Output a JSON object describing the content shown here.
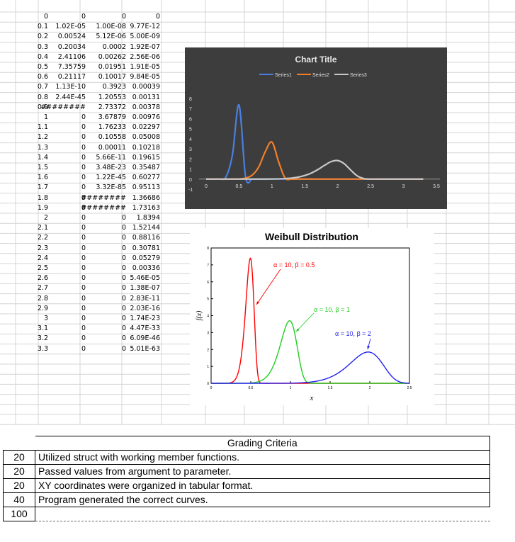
{
  "sheet": {
    "rows": [
      [
        "0",
        "0",
        "0",
        "0"
      ],
      [
        "0.1",
        "1.02E-05",
        "1.00E-08",
        "9.77E-12"
      ],
      [
        "0.2",
        "0.00524",
        "5.12E-06",
        "5.00E-09"
      ],
      [
        "0.3",
        "0.20034",
        "0.0002",
        "1.92E-07"
      ],
      [
        "0.4",
        "2.41106",
        "0.00262",
        "2.56E-06"
      ],
      [
        "0.5",
        "7.35759",
        "0.01951",
        "1.91E-05"
      ],
      [
        "0.6",
        "0.21117",
        "0.10017",
        "9.84E-05"
      ],
      [
        "0.7",
        "1.13E-10",
        "0.3923",
        "0.00039"
      ],
      [
        "0.8",
        "2.44E-45",
        "1.20553",
        "0.00131"
      ],
      [
        "0.9",
        "########",
        "2.73372",
        "0.00378"
      ],
      [
        "1",
        "0",
        "3.67879",
        "0.00976"
      ],
      [
        "1.1",
        "0",
        "1.76233",
        "0.02297"
      ],
      [
        "1.2",
        "0",
        "0.10558",
        "0.05008"
      ],
      [
        "1.3",
        "0",
        "0.00011",
        "0.10218"
      ],
      [
        "1.4",
        "0",
        "5.66E-11",
        "0.19615"
      ],
      [
        "1.5",
        "0",
        "3.48E-23",
        "0.35487"
      ],
      [
        "1.6",
        "0",
        "1.22E-45",
        "0.60277"
      ],
      [
        "1.7",
        "0",
        "3.32E-85",
        "0.95113"
      ],
      [
        "1.8",
        "0",
        "########",
        "1.36686"
      ],
      [
        "1.9",
        "0",
        "########",
        "1.73163"
      ],
      [
        "2",
        "0",
        "0",
        "1.8394"
      ],
      [
        "2.1",
        "0",
        "0",
        "1.52144"
      ],
      [
        "2.2",
        "0",
        "0",
        "0.88116"
      ],
      [
        "2.3",
        "0",
        "0",
        "0.30781"
      ],
      [
        "2.4",
        "0",
        "0",
        "0.05279"
      ],
      [
        "2.5",
        "0",
        "0",
        "0.00336"
      ],
      [
        "2.6",
        "0",
        "0",
        "5.46E-05"
      ],
      [
        "2.7",
        "0",
        "0",
        "1.38E-07"
      ],
      [
        "2.8",
        "0",
        "0",
        "2.83E-11"
      ],
      [
        "2.9",
        "0",
        "0",
        "2.03E-16"
      ],
      [
        "3",
        "0",
        "0",
        "1.74E-23"
      ],
      [
        "3.1",
        "0",
        "0",
        "4.47E-33"
      ],
      [
        "3.2",
        "0",
        "0",
        "6.09E-46"
      ],
      [
        "3.3",
        "0",
        "0",
        "5.01E-63"
      ]
    ]
  },
  "chart_data": [
    {
      "type": "line",
      "title": "Chart Title",
      "background": "#3d3d3d",
      "legend_position": "top",
      "x": [
        0,
        0.1,
        0.2,
        0.3,
        0.4,
        0.5,
        0.6,
        0.7,
        0.8,
        0.9,
        1,
        1.1,
        1.2,
        1.3,
        1.4,
        1.5,
        1.6,
        1.7,
        1.8,
        1.9,
        2,
        2.1,
        2.2,
        2.3,
        2.4,
        2.5,
        2.6,
        2.7,
        2.8,
        2.9,
        3,
        3.1,
        3.2,
        3.3
      ],
      "xlim": [
        0,
        3.5
      ],
      "ylim": [
        -1,
        8
      ],
      "x_ticks": [
        "0",
        "0.5",
        "1",
        "1.5",
        "2",
        "2.5",
        "3",
        "3.5"
      ],
      "y_ticks": [
        "-1",
        "0",
        "1",
        "2",
        "3",
        "4",
        "5",
        "6",
        "7",
        "8"
      ],
      "series": [
        {
          "name": "Series1",
          "color": "#4a7fe0",
          "values": [
            0,
            1.02e-05,
            0.00524,
            0.20034,
            2.41106,
            7.35759,
            0.21117,
            0,
            0,
            0,
            0,
            0,
            0,
            0,
            0,
            0,
            0,
            0,
            0,
            0,
            0,
            0,
            0,
            0,
            0,
            0,
            0,
            0,
            0,
            0,
            0,
            0,
            0,
            0
          ]
        },
        {
          "name": "Series2",
          "color": "#f07f2a",
          "values": [
            0,
            0,
            5.12e-06,
            0.0002,
            0.00262,
            0.01951,
            0.10017,
            0.3923,
            1.20553,
            2.73372,
            3.67879,
            1.76233,
            0.10558,
            0.00011,
            0,
            0,
            0,
            0,
            0,
            0,
            0,
            0,
            0,
            0,
            0,
            0,
            0,
            0,
            0,
            0,
            0,
            0,
            0,
            0
          ]
        },
        {
          "name": "Series3",
          "color": "#c8c8c8",
          "values": [
            0,
            0,
            0,
            1.92e-07,
            2.56e-06,
            1.91e-05,
            9.84e-05,
            0.00039,
            0.00131,
            0.00378,
            0.00976,
            0.02297,
            0.05008,
            0.10218,
            0.19615,
            0.35487,
            0.60277,
            0.95113,
            1.36686,
            1.73163,
            1.8394,
            1.52144,
            0.88116,
            0.30781,
            0.05279,
            0.00336,
            5.46e-05,
            0,
            0,
            0,
            0,
            0,
            0,
            0
          ]
        }
      ]
    },
    {
      "type": "line",
      "title": "Weibull Distribution",
      "xlabel": "x",
      "ylabel": "f(x)",
      "xlim": [
        0,
        2.5
      ],
      "ylim": [
        0,
        8
      ],
      "x_ticks": [
        "0",
        "0.5",
        "1",
        "1.5",
        "2",
        "2.5"
      ],
      "y_ticks": [
        "0",
        "1",
        "2",
        "3",
        "4",
        "5",
        "6",
        "7",
        "8"
      ],
      "annotations": [
        "α = 10, β = 0.5",
        "α = 10, β = 1",
        "α = 10, β = 2"
      ],
      "series": [
        {
          "color": "#ff0000",
          "alpha": 10,
          "beta": 0.5
        },
        {
          "color": "#22cc22",
          "alpha": 10,
          "beta": 1
        },
        {
          "color": "#2222ee",
          "alpha": 10,
          "beta": 2
        }
      ]
    }
  ],
  "grading": {
    "title": "Grading Criteria",
    "items": [
      {
        "points": "20",
        "text": "Utilized struct with working member functions."
      },
      {
        "points": "20",
        "text": "Passed values from argument to parameter."
      },
      {
        "points": "20",
        "text": "XY coordinates were organized in tabular format."
      },
      {
        "points": "40",
        "text": "Program generated the correct curves."
      }
    ],
    "total": "100"
  }
}
